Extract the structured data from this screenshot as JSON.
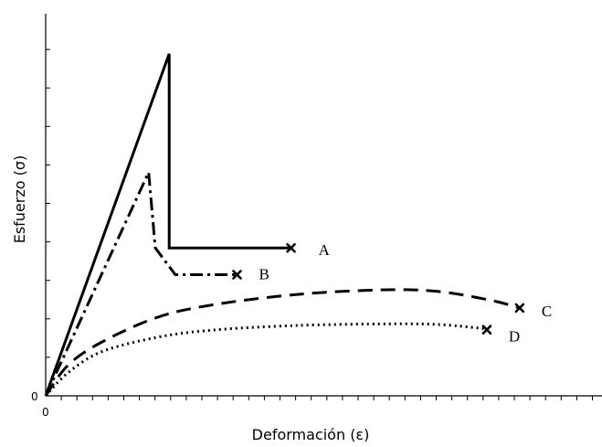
{
  "chart_data": {
    "type": "line",
    "xlabel": "Deformación (ε)",
    "ylabel": "Esfuerzo (σ)",
    "x_origin_label": "0",
    "y_origin_label": "0",
    "xlim": [
      0,
      100
    ],
    "ylim": [
      0,
      100
    ],
    "grid": false,
    "legend": "none",
    "series": [
      {
        "name": "A",
        "style": "solid",
        "end_marker": "x",
        "points": [
          [
            0,
            0
          ],
          [
            22.2,
            89.5
          ],
          [
            22.2,
            38.7
          ],
          [
            44.1,
            38.7
          ]
        ]
      },
      {
        "name": "B",
        "style": "dash-dot",
        "end_marker": "x",
        "points": [
          [
            0,
            0
          ],
          [
            18.5,
            58.5
          ],
          [
            19.7,
            38.7
          ],
          [
            23.3,
            31.7
          ],
          [
            34.4,
            31.7
          ]
        ]
      },
      {
        "name": "C",
        "style": "dashed",
        "end_marker": "x",
        "points": [
          [
            0,
            0
          ],
          [
            4,
            8
          ],
          [
            10,
            14
          ],
          [
            20,
            20.5
          ],
          [
            30,
            23.8
          ],
          [
            45,
            26.5
          ],
          [
            60,
            27.7
          ],
          [
            70,
            27.4
          ],
          [
            80,
            25
          ],
          [
            85.2,
            23
          ]
        ]
      },
      {
        "name": "D",
        "style": "dotted",
        "end_marker": "x",
        "points": [
          [
            0,
            0
          ],
          [
            4,
            6
          ],
          [
            10,
            11.5
          ],
          [
            20,
            15.3
          ],
          [
            30,
            17.2
          ],
          [
            45,
            18.4
          ],
          [
            60,
            18.8
          ],
          [
            70,
            18.7
          ],
          [
            78,
            17.7
          ],
          [
            79.3,
            17.3
          ]
        ]
      }
    ]
  },
  "axis_ticks": {
    "x_count": 36,
    "y_count": 12
  }
}
